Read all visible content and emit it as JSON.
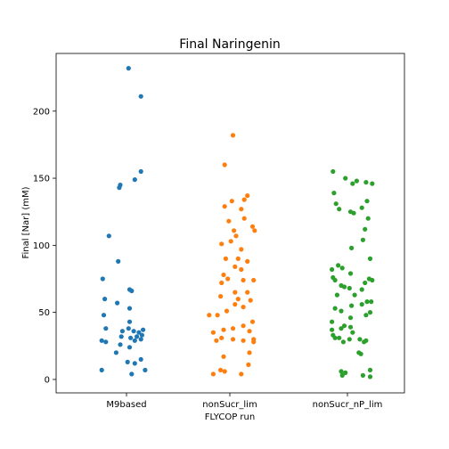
{
  "chart_data": {
    "type": "scatter",
    "subtype": "strip",
    "title": "Final Naringenin",
    "xlabel": "FLYCOP run",
    "ylabel": "Final [Nar] (mM)",
    "ylim": [
      -10,
      243
    ],
    "yticks": [
      0,
      50,
      100,
      150,
      200
    ],
    "ytick_labels": [
      "0",
      "50",
      "100",
      "150",
      "200"
    ],
    "categories": [
      "M9based",
      "nonSucr_lim",
      "nonSucr_nP_lim"
    ],
    "grid": false,
    "legend": "none",
    "series": [
      {
        "category": "M9based",
        "color": "#1f77b4",
        "points": [
          {
            "j": 0.02,
            "v": 232
          },
          {
            "j": 0.14,
            "v": 211
          },
          {
            "j": 0.14,
            "v": 155
          },
          {
            "j": 0.08,
            "v": 149
          },
          {
            "j": -0.06,
            "v": 145
          },
          {
            "j": -0.07,
            "v": 143
          },
          {
            "j": -0.17,
            "v": 107
          },
          {
            "j": -0.08,
            "v": 88
          },
          {
            "j": -0.23,
            "v": 75
          },
          {
            "j": 0.03,
            "v": 67
          },
          {
            "j": 0.05,
            "v": 66
          },
          {
            "j": -0.21,
            "v": 60
          },
          {
            "j": -0.09,
            "v": 57
          },
          {
            "j": 0.03,
            "v": 53
          },
          {
            "j": -0.22,
            "v": 48
          },
          {
            "j": -0.2,
            "v": 38
          },
          {
            "j": 0.03,
            "v": 43
          },
          {
            "j": -0.04,
            "v": 36
          },
          {
            "j": 0.02,
            "v": 38
          },
          {
            "j": 0.07,
            "v": 36
          },
          {
            "j": 0.12,
            "v": 35
          },
          {
            "j": 0.16,
            "v": 37
          },
          {
            "j": 0.1,
            "v": 32
          },
          {
            "j": 0.15,
            "v": 33
          },
          {
            "j": -0.05,
            "v": 32
          },
          {
            "j": 0.04,
            "v": 31
          },
          {
            "j": 0.14,
            "v": 30
          },
          {
            "j": 0.08,
            "v": 29
          },
          {
            "j": -0.24,
            "v": 29
          },
          {
            "j": -0.2,
            "v": 28
          },
          {
            "j": -0.06,
            "v": 26
          },
          {
            "j": 0.03,
            "v": 24
          },
          {
            "j": -0.1,
            "v": 20
          },
          {
            "j": 0.14,
            "v": 15
          },
          {
            "j": 0.08,
            "v": 12
          },
          {
            "j": 0.01,
            "v": 13
          },
          {
            "j": -0.24,
            "v": 7
          },
          {
            "j": 0.18,
            "v": 7
          },
          {
            "j": 0.05,
            "v": 4
          }
        ]
      },
      {
        "category": "nonSucr_lim",
        "color": "#ff7f0e",
        "points": [
          {
            "j": 0.03,
            "v": 182
          },
          {
            "j": -0.05,
            "v": 160
          },
          {
            "j": 0.17,
            "v": 137
          },
          {
            "j": 0.14,
            "v": 134
          },
          {
            "j": 0.02,
            "v": 133
          },
          {
            "j": -0.05,
            "v": 129
          },
          {
            "j": 0.11,
            "v": 127
          },
          {
            "j": 0.14,
            "v": 120
          },
          {
            "j": -0.01,
            "v": 118
          },
          {
            "j": 0.22,
            "v": 114
          },
          {
            "j": 0.24,
            "v": 111
          },
          {
            "j": 0.04,
            "v": 111
          },
          {
            "j": 0.06,
            "v": 107
          },
          {
            "j": 0.01,
            "v": 103
          },
          {
            "j": -0.08,
            "v": 101
          },
          {
            "j": 0.11,
            "v": 97
          },
          {
            "j": 0.08,
            "v": 90
          },
          {
            "j": -0.04,
            "v": 90
          },
          {
            "j": 0.17,
            "v": 88
          },
          {
            "j": 0.05,
            "v": 84
          },
          {
            "j": 0.11,
            "v": 82
          },
          {
            "j": -0.06,
            "v": 78
          },
          {
            "j": 0.23,
            "v": 74
          },
          {
            "j": -0.02,
            "v": 75
          },
          {
            "j": 0.13,
            "v": 74
          },
          {
            "j": -0.08,
            "v": 72
          },
          {
            "j": 0.05,
            "v": 65
          },
          {
            "j": 0.17,
            "v": 65
          },
          {
            "j": -0.09,
            "v": 62
          },
          {
            "j": 0.08,
            "v": 60
          },
          {
            "j": 0.2,
            "v": 59
          },
          {
            "j": 0.05,
            "v": 56
          },
          {
            "j": 0.13,
            "v": 54
          },
          {
            "j": -0.03,
            "v": 51
          },
          {
            "j": -0.2,
            "v": 48
          },
          {
            "j": -0.12,
            "v": 48
          },
          {
            "j": 0.22,
            "v": 43
          },
          {
            "j": 0.13,
            "v": 40
          },
          {
            "j": 0.03,
            "v": 38
          },
          {
            "j": -0.06,
            "v": 37
          },
          {
            "j": 0.19,
            "v": 36
          },
          {
            "j": -0.16,
            "v": 35
          },
          {
            "j": -0.08,
            "v": 31
          },
          {
            "j": 0.03,
            "v": 30
          },
          {
            "j": 0.23,
            "v": 30
          },
          {
            "j": -0.13,
            "v": 29
          },
          {
            "j": 0.13,
            "v": 29
          },
          {
            "j": 0.23,
            "v": 28
          },
          {
            "j": 0.19,
            "v": 20
          },
          {
            "j": -0.06,
            "v": 17
          },
          {
            "j": 0.18,
            "v": 11
          },
          {
            "j": -0.09,
            "v": 7
          },
          {
            "j": -0.05,
            "v": 6
          },
          {
            "j": -0.16,
            "v": 4
          },
          {
            "j": 0.11,
            "v": 4
          }
        ]
      },
      {
        "category": "nonSucr_nP_lim",
        "color": "#2ca02c",
        "points": [
          {
            "j": -0.14,
            "v": 155
          },
          {
            "j": -0.02,
            "v": 150
          },
          {
            "j": 0.09,
            "v": 148
          },
          {
            "j": 0.18,
            "v": 147
          },
          {
            "j": 0.24,
            "v": 146
          },
          {
            "j": 0.05,
            "v": 146
          },
          {
            "j": -0.13,
            "v": 139
          },
          {
            "j": -0.11,
            "v": 131
          },
          {
            "j": -0.08,
            "v": 127
          },
          {
            "j": 0.19,
            "v": 133
          },
          {
            "j": 0.14,
            "v": 128
          },
          {
            "j": 0.03,
            "v": 125
          },
          {
            "j": 0.06,
            "v": 124
          },
          {
            "j": 0.2,
            "v": 120
          },
          {
            "j": 0.17,
            "v": 112
          },
          {
            "j": 0.15,
            "v": 104
          },
          {
            "j": 0.04,
            "v": 98
          },
          {
            "j": 0.22,
            "v": 90
          },
          {
            "j": -0.09,
            "v": 85
          },
          {
            "j": -0.05,
            "v": 83
          },
          {
            "j": -0.15,
            "v": 82
          },
          {
            "j": 0.03,
            "v": 79
          },
          {
            "j": -0.14,
            "v": 76
          },
          {
            "j": -0.12,
            "v": 74
          },
          {
            "j": 0.21,
            "v": 75
          },
          {
            "j": 0.24,
            "v": 74
          },
          {
            "j": 0.17,
            "v": 72
          },
          {
            "j": -0.06,
            "v": 70
          },
          {
            "j": -0.03,
            "v": 69
          },
          {
            "j": 0.02,
            "v": 68
          },
          {
            "j": 0.14,
            "v": 67
          },
          {
            "j": -0.1,
            "v": 63
          },
          {
            "j": 0.07,
            "v": 63
          },
          {
            "j": 0.19,
            "v": 58
          },
          {
            "j": 0.23,
            "v": 58
          },
          {
            "j": 0.14,
            "v": 56
          },
          {
            "j": 0.04,
            "v": 55
          },
          {
            "j": -0.12,
            "v": 53
          },
          {
            "j": -0.06,
            "v": 51
          },
          {
            "j": 0.22,
            "v": 50
          },
          {
            "j": 0.18,
            "v": 48
          },
          {
            "j": 0.03,
            "v": 46
          },
          {
            "j": -0.15,
            "v": 43
          },
          {
            "j": -0.03,
            "v": 40
          },
          {
            "j": 0.03,
            "v": 39
          },
          {
            "j": -0.06,
            "v": 38
          },
          {
            "j": -0.15,
            "v": 37
          },
          {
            "j": 0.05,
            "v": 35
          },
          {
            "j": -0.14,
            "v": 33
          },
          {
            "j": -0.08,
            "v": 31
          },
          {
            "j": -0.12,
            "v": 31
          },
          {
            "j": 0.02,
            "v": 30
          },
          {
            "j": 0.12,
            "v": 30
          },
          {
            "j": 0.18,
            "v": 29
          },
          {
            "j": 0.16,
            "v": 28
          },
          {
            "j": -0.04,
            "v": 28
          },
          {
            "j": 0.11,
            "v": 20
          },
          {
            "j": 0.13,
            "v": 19
          },
          {
            "j": 0.22,
            "v": 7
          },
          {
            "j": -0.06,
            "v": 6
          },
          {
            "j": -0.02,
            "v": 5
          },
          {
            "j": -0.05,
            "v": 3
          },
          {
            "j": 0.15,
            "v": 3
          },
          {
            "j": 0.22,
            "v": 2
          }
        ]
      }
    ]
  }
}
